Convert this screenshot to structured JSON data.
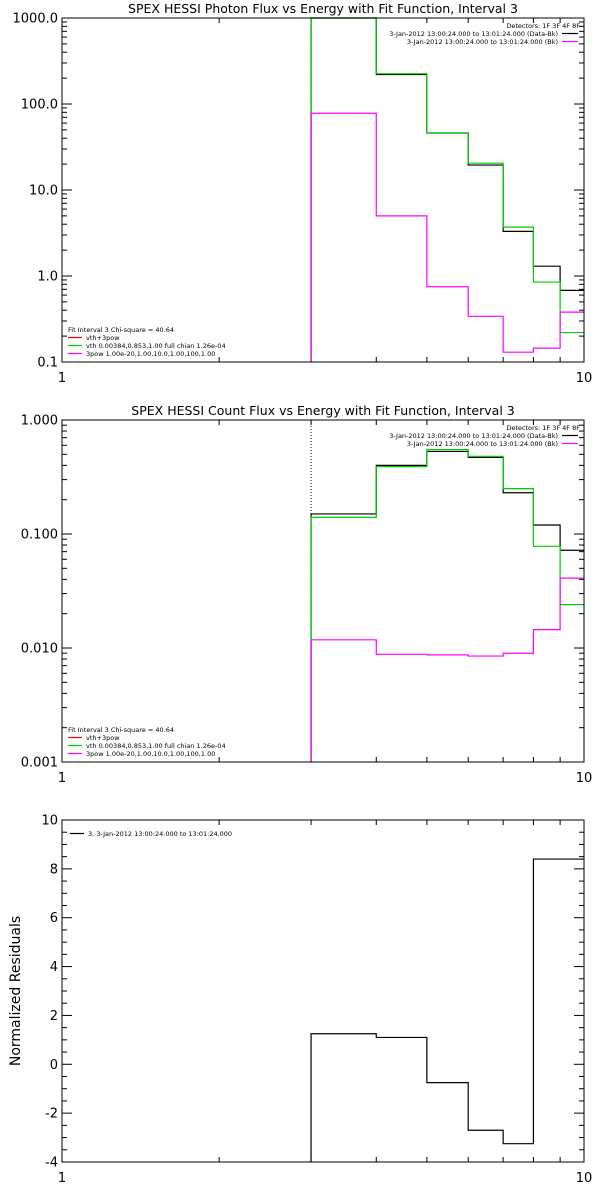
{
  "chart_data": [
    {
      "type": "line",
      "title": "SPEX HESSI Photon Flux vs Energy with Fit Function, Interval 3",
      "xlabel": "",
      "ylabel": "",
      "xscale": "log",
      "yscale": "log",
      "xlim": [
        1,
        10
      ],
      "ylim": [
        0.1,
        1000
      ],
      "xticks": [
        "1",
        "10"
      ],
      "yticks": [
        "0.1",
        "1.0",
        "10.0",
        "100.0",
        "1000.0"
      ],
      "marker_line": 3,
      "edges": [
        3,
        4,
        5,
        6,
        7,
        8,
        9,
        10
      ],
      "legend_right": {
        "position": "top-right",
        "header": "Detectors: 1F 3F 4F 8F",
        "entries": [
          {
            "text": "3-Jan-2012 13:00:24.000 to 13:01:24.000 (Data-Bk)",
            "color": "#000000"
          },
          {
            "text": "3-Jan-2012 13:00:24.000 to 13:01:24.000 (Bk)",
            "color": "#ff00ff"
          }
        ]
      },
      "legend_left": {
        "position": "bottom-left",
        "header": "Fit Interval 3   Chi-square = 40.64",
        "entries": [
          {
            "text": "vth+3pow",
            "color": "#ff0000"
          },
          {
            "text": "vth 0.00384,0.853,1.00   full chian 1.26e-04",
            "color": "#00cc00"
          },
          {
            "text": "3pow 1.00e-20,1.00,10.0,1.00,100,1.00",
            "color": "#ff00ff"
          }
        ]
      },
      "series": [
        {
          "color": "#000000",
          "values": [
            1000,
            220,
            46,
            19.5,
            3.3,
            1.3,
            0.68
          ]
        },
        {
          "color": "#00cc00",
          "values": [
            1000,
            225,
            46,
            20.5,
            3.7,
            0.85,
            0.22
          ]
        },
        {
          "color": "#ff00ff",
          "values": [
            78,
            5.0,
            0.75,
            0.34,
            0.13,
            0.145,
            0.38
          ]
        }
      ]
    },
    {
      "type": "line",
      "title": "SPEX HESSI Count Flux vs Energy with Fit Function, Interval 3",
      "xlabel": "",
      "ylabel": "",
      "xscale": "log",
      "yscale": "log",
      "xlim": [
        1,
        10
      ],
      "ylim": [
        0.001,
        1
      ],
      "xticks": [
        "1",
        "10"
      ],
      "yticks": [
        "0.001",
        "0.010",
        "0.100",
        "1.000"
      ],
      "marker_line": 3,
      "edges": [
        3,
        4,
        5,
        6,
        7,
        8,
        9,
        10
      ],
      "legend_right": {
        "position": "top-right",
        "header": "Detectors: 1F 3F 4F 8F",
        "entries": [
          {
            "text": "3-Jan-2012 13:00:24.000 to 13:01:24.000 (Data-Bk)",
            "color": "#000000"
          },
          {
            "text": "3-Jan-2012 13:00:24.000 to 13:01:24.000 (Bk)",
            "color": "#ff00ff"
          }
        ]
      },
      "legend_left": {
        "position": "bottom-left",
        "header": "Fit Interval 3   Chi-square = 40.64",
        "entries": [
          {
            "text": "vth+3pow",
            "color": "#ff0000"
          },
          {
            "text": "vth 0.00384,0.853,1.00   full chian 1.26e-04",
            "color": "#00cc00"
          },
          {
            "text": "3pow 1.00e-20,1.00,10.0,1.00,100,1.00",
            "color": "#ff00ff"
          }
        ]
      },
      "series": [
        {
          "color": "#000000",
          "values": [
            0.15,
            0.4,
            0.53,
            0.47,
            0.23,
            0.12,
            0.072
          ]
        },
        {
          "color": "#00cc00",
          "values": [
            0.14,
            0.39,
            0.55,
            0.48,
            0.25,
            0.078,
            0.024
          ]
        },
        {
          "color": "#ff00ff",
          "values": [
            0.0118,
            0.0088,
            0.0087,
            0.0085,
            0.009,
            0.0145,
            0.041
          ]
        }
      ]
    },
    {
      "type": "line",
      "title": "",
      "xlabel": "",
      "ylabel": "Normalized Residuals",
      "xscale": "log",
      "yscale": "linear",
      "xlim": [
        1,
        10
      ],
      "ylim": [
        -4,
        10
      ],
      "xticks": [
        "1",
        "10"
      ],
      "yticks": [
        "-4",
        "-2",
        "0",
        "2",
        "4",
        "6",
        "8",
        "10"
      ],
      "edges": [
        3,
        4,
        5,
        6,
        7,
        8,
        9,
        10
      ],
      "legend": {
        "position": "top-left",
        "entries": [
          {
            "text": "3.  3-Jan-2012 13:00:24.000 to 13:01:24.000",
            "color": "#000000"
          }
        ]
      },
      "series": [
        {
          "color": "#000000",
          "values": [
            1.25,
            1.1,
            -0.75,
            -2.7,
            -3.25,
            8.4,
            8.4
          ]
        }
      ]
    }
  ]
}
